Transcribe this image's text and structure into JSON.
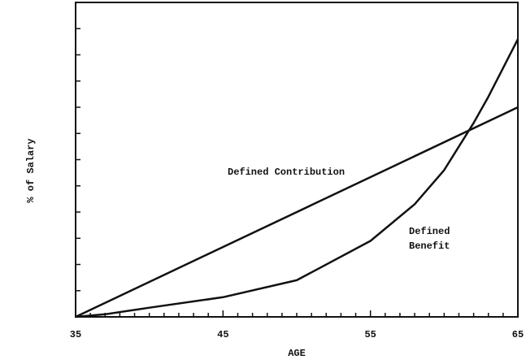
{
  "chart_data": {
    "type": "line",
    "xlabel": "AGE",
    "ylabel": "% of Salary",
    "xlim": [
      35,
      65
    ],
    "xticks": [
      35,
      45,
      55,
      65
    ],
    "xminorticks": [
      36,
      37,
      38,
      39,
      40,
      41,
      42,
      43,
      44,
      46,
      47,
      48,
      49,
      50,
      51,
      52,
      53,
      54,
      56,
      57,
      58,
      59,
      60,
      61,
      62,
      63,
      64
    ],
    "ylim": [
      0,
      12
    ],
    "yticks": [
      1,
      2,
      3,
      4,
      5,
      6,
      7,
      8,
      9,
      10,
      11
    ],
    "annotations": [
      "Defined Contribution",
      "Defined",
      "Benefit"
    ],
    "series": [
      {
        "name": "Defined Contribution",
        "color": "#111111",
        "x": [
          35,
          65
        ],
        "values": [
          0,
          8
        ]
      },
      {
        "name": "Defined Benefit",
        "color": "#111111",
        "x": [
          35,
          37,
          40,
          45,
          50,
          55,
          58,
          60,
          62,
          63,
          64,
          65
        ],
        "values": [
          0,
          0.1,
          0.35,
          0.75,
          1.4,
          2.9,
          4.3,
          5.6,
          7.4,
          8.4,
          9.5,
          10.6
        ]
      }
    ]
  }
}
